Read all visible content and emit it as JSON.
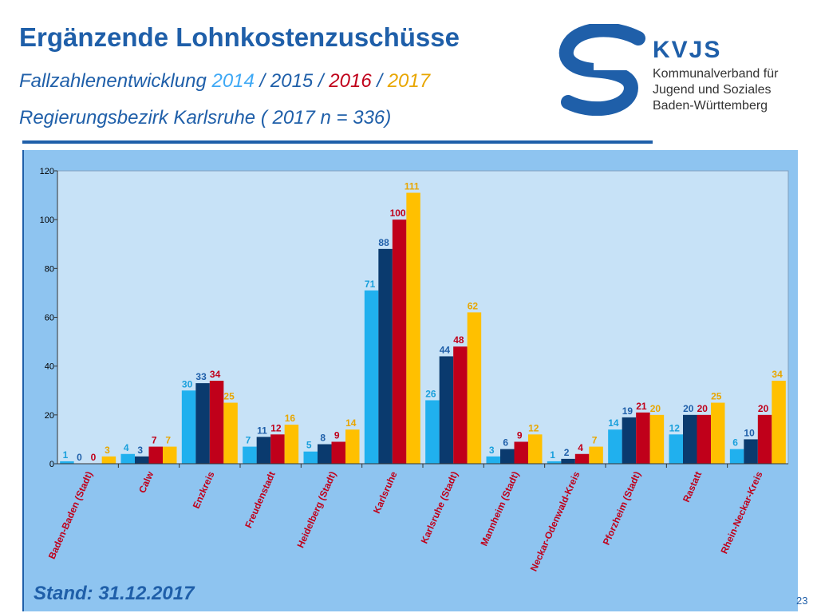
{
  "header": {
    "title": "Ergänzende Lohnkostenzuschüsse",
    "subtitle_prefix": "Fallzahlenentwicklung ",
    "years": [
      "2014",
      "2015",
      "2016",
      "2017"
    ],
    "year_sep": " / ",
    "region": "Regierungsbezirk Karlsruhe ( 2017 n = 336)"
  },
  "logo": {
    "name": "KVJS",
    "lines": [
      "Kommunalverband für",
      "Jugend und Soziales",
      "Baden-Württemberg"
    ]
  },
  "footer": {
    "stand": "Stand: 31.12.2017",
    "page": "23"
  },
  "colors": {
    "accent": "#1f5fa9",
    "plot_bg": "#c7e2f7",
    "panel_bg": "#8ec4f0"
  },
  "chart_data": {
    "type": "bar",
    "ylim": [
      0,
      120
    ],
    "yticks": [
      0,
      20,
      40,
      60,
      80,
      100,
      120
    ],
    "grid": false,
    "categories": [
      "Baden-Baden (Stadt)",
      "Calw",
      "Enzkreis",
      "Freudenstadt",
      "Heidelberg (Stadt)",
      "Karlsruhe",
      "Karlsruhe (Stadt)",
      "Mannheim (Stadt)",
      "Neckar-Odenwald-Kreis",
      "Pforzheim (Stadt)",
      "Rastatt",
      "Rhein-Neckar-Kreis"
    ],
    "series": [
      {
        "color": "#20b0ee",
        "label_color": "#1aa0dc",
        "values": [
          1,
          4,
          30,
          7,
          5,
          71,
          26,
          3,
          1,
          14,
          12,
          6
        ]
      },
      {
        "color": "#0a3a6e",
        "label_color": "#1f5fa9",
        "values": [
          0,
          3,
          33,
          11,
          8,
          88,
          44,
          6,
          2,
          19,
          20,
          10
        ]
      },
      {
        "color": "#c0001a",
        "label_color": "#c0001a",
        "values": [
          0,
          7,
          34,
          12,
          9,
          100,
          48,
          9,
          4,
          21,
          20,
          20
        ]
      },
      {
        "color": "#ffc000",
        "label_color": "#e8a600",
        "values": [
          3,
          7,
          25,
          16,
          14,
          111,
          62,
          12,
          7,
          20,
          25,
          34
        ]
      }
    ]
  }
}
